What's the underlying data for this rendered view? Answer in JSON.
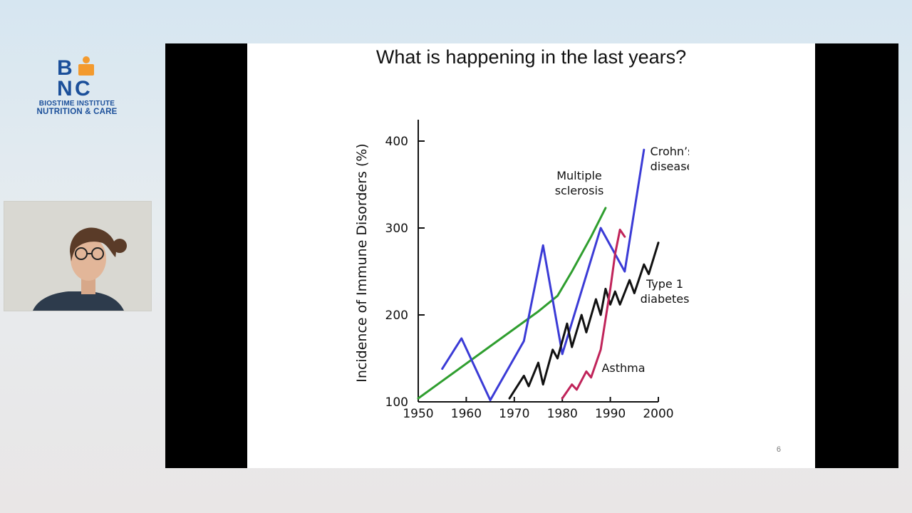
{
  "logo": {
    "line1": "BIOSTIME INSTITUTE",
    "line2": "NUTRITION & CARE",
    "colors": {
      "blue": "#1b4f9a",
      "orange": "#f39a2e"
    }
  },
  "slide": {
    "title": "What is happening in the last years?",
    "page_number": "6"
  },
  "chart_data": {
    "type": "line",
    "title": "",
    "xlabel": "",
    "ylabel": "Incidence of Immune Disorders (%)",
    "xlim": [
      1950,
      2000
    ],
    "ylim": [
      100,
      400
    ],
    "x_ticks": [
      "1950",
      "1960",
      "1970",
      "1980",
      "1990",
      "2000"
    ],
    "y_ticks": [
      "100",
      "200",
      "300",
      "400"
    ],
    "grid": false,
    "series": [
      {
        "name": "Multiple sclerosis",
        "label_lines": [
          "Multiple",
          "sclerosis"
        ],
        "color": "#2f9e2f",
        "points": [
          [
            1950,
            104
          ],
          [
            1955,
            124
          ],
          [
            1960,
            144
          ],
          [
            1965,
            164
          ],
          [
            1970,
            184
          ],
          [
            1975,
            204
          ],
          [
            1979,
            222
          ],
          [
            1982,
            250
          ],
          [
            1986,
            290
          ],
          [
            1989,
            323
          ]
        ]
      },
      {
        "name": "Crohn's disease",
        "label_lines": [
          "Crohn’s",
          "disease"
        ],
        "color": "#3b3bd6",
        "points": [
          [
            1955,
            138
          ],
          [
            1959,
            173
          ],
          [
            1965,
            102
          ],
          [
            1972,
            170
          ],
          [
            1976,
            280
          ],
          [
            1980,
            155
          ],
          [
            1988,
            300
          ],
          [
            1993,
            250
          ],
          [
            1997,
            390
          ]
        ]
      },
      {
        "name": "Type 1 diabetes",
        "label_lines": [
          "Type 1",
          "diabetes"
        ],
        "color": "#111111",
        "points": [
          [
            1969,
            104
          ],
          [
            1972,
            130
          ],
          [
            1973,
            118
          ],
          [
            1975,
            145
          ],
          [
            1976,
            120
          ],
          [
            1978,
            160
          ],
          [
            1979,
            150
          ],
          [
            1981,
            190
          ],
          [
            1982,
            163
          ],
          [
            1984,
            200
          ],
          [
            1985,
            180
          ],
          [
            1987,
            218
          ],
          [
            1988,
            200
          ],
          [
            1989,
            230
          ],
          [
            1990,
            212
          ],
          [
            1991,
            227
          ],
          [
            1992,
            212
          ],
          [
            1994,
            240
          ],
          [
            1995,
            225
          ],
          [
            1997,
            258
          ],
          [
            1998,
            247
          ],
          [
            2000,
            283
          ]
        ]
      },
      {
        "name": "Asthma",
        "label_lines": [
          "Asthma"
        ],
        "color": "#c0245a",
        "points": [
          [
            1980,
            104
          ],
          [
            1982,
            120
          ],
          [
            1983,
            114
          ],
          [
            1985,
            135
          ],
          [
            1986,
            128
          ],
          [
            1988,
            160
          ],
          [
            1990,
            230
          ],
          [
            1991,
            270
          ],
          [
            1992,
            298
          ],
          [
            1993,
            290
          ]
        ]
      }
    ]
  }
}
